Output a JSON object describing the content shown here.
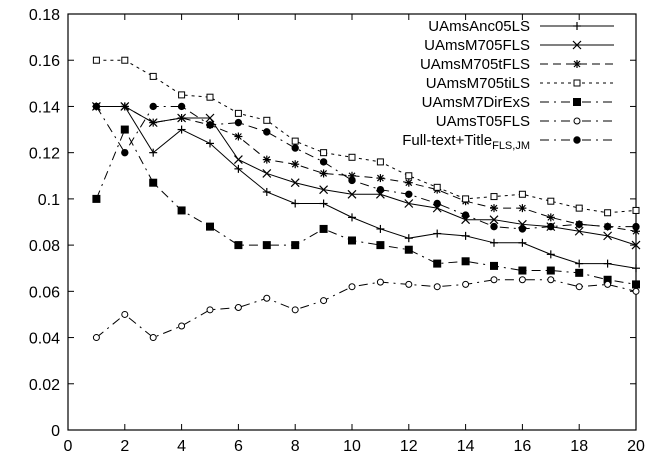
{
  "chart_data": {
    "type": "line",
    "title": "",
    "xlabel": "",
    "ylabel": "",
    "xlim": [
      0,
      20
    ],
    "ylim": [
      0,
      0.18
    ],
    "xticks": [
      0,
      2,
      4,
      6,
      8,
      10,
      12,
      14,
      16,
      18,
      20
    ],
    "xtick_labels": [
      "0",
      "2",
      "4",
      "6",
      "8",
      "10",
      "12",
      "14",
      "16",
      "18",
      "20"
    ],
    "yticks": [
      0,
      0.02,
      0.04,
      0.06,
      0.08,
      0.1,
      0.12,
      0.14,
      0.16,
      0.18
    ],
    "ytick_labels": [
      "0",
      "0.02",
      "0.04",
      "0.06",
      "0.08",
      "0.1",
      "0.12",
      "0.14",
      "0.16",
      "0.18"
    ],
    "grid": false,
    "legend_position": "top-right",
    "x": [
      1,
      2,
      3,
      4,
      5,
      6,
      7,
      8,
      9,
      10,
      11,
      12,
      13,
      14,
      15,
      16,
      17,
      18,
      19,
      20
    ],
    "series": [
      {
        "name": "UAmsAnc05LS",
        "marker": "plus",
        "dash": "solid",
        "values": [
          0.14,
          0.14,
          0.12,
          0.13,
          0.124,
          0.113,
          0.103,
          0.098,
          0.098,
          0.092,
          0.087,
          0.083,
          0.085,
          0.084,
          0.081,
          0.081,
          0.076,
          0.072,
          0.072,
          0.07
        ]
      },
      {
        "name": "UAmsM705FLS",
        "marker": "x",
        "dash": "solid",
        "values": [
          0.14,
          0.14,
          0.133,
          0.135,
          0.135,
          0.117,
          0.111,
          0.107,
          0.104,
          0.102,
          0.102,
          0.098,
          0.096,
          0.091,
          0.091,
          0.089,
          0.088,
          0.086,
          0.084,
          0.08
        ]
      },
      {
        "name": "UAmsM705tFLS",
        "marker": "star",
        "dash": "dashed",
        "values": [
          0.14,
          0.14,
          0.133,
          0.135,
          0.132,
          0.127,
          0.117,
          0.115,
          0.111,
          0.11,
          0.109,
          0.107,
          0.104,
          0.099,
          0.096,
          0.096,
          0.092,
          0.089,
          0.088,
          0.086
        ]
      },
      {
        "name": "UAmsM705tiLS",
        "marker": "open-square",
        "dash": "dotted",
        "values": [
          0.16,
          0.16,
          0.153,
          0.145,
          0.144,
          0.137,
          0.134,
          0.125,
          0.12,
          0.118,
          0.116,
          0.11,
          0.105,
          0.1,
          0.101,
          0.102,
          0.099,
          0.096,
          0.094,
          0.095
        ]
      },
      {
        "name": "UAmsM7DirExS",
        "marker": "filled-square",
        "dash": "dashdot",
        "values": [
          0.1,
          0.13,
          0.107,
          0.095,
          0.088,
          0.08,
          0.08,
          0.08,
          0.087,
          0.082,
          0.08,
          0.078,
          0.072,
          0.073,
          0.071,
          0.069,
          0.069,
          0.068,
          0.065,
          0.063
        ]
      },
      {
        "name": "UAmsT05FLS",
        "marker": "open-circle",
        "dash": "dashdot",
        "values": [
          0.04,
          0.05,
          0.04,
          0.045,
          0.052,
          0.053,
          0.057,
          0.052,
          0.056,
          0.062,
          0.064,
          0.063,
          0.062,
          0.063,
          0.065,
          0.065,
          0.065,
          0.062,
          0.063,
          0.06
        ]
      },
      {
        "name": "Full-text+Title",
        "name_subscript": "FLS,JM",
        "marker": "filled-circle",
        "dash": "dashdot",
        "values": [
          0.14,
          0.12,
          0.14,
          0.14,
          0.132,
          0.133,
          0.129,
          0.122,
          0.116,
          0.108,
          0.104,
          0.102,
          0.098,
          0.093,
          0.088,
          0.087,
          0.088,
          0.089,
          0.088,
          0.088
        ]
      }
    ]
  }
}
